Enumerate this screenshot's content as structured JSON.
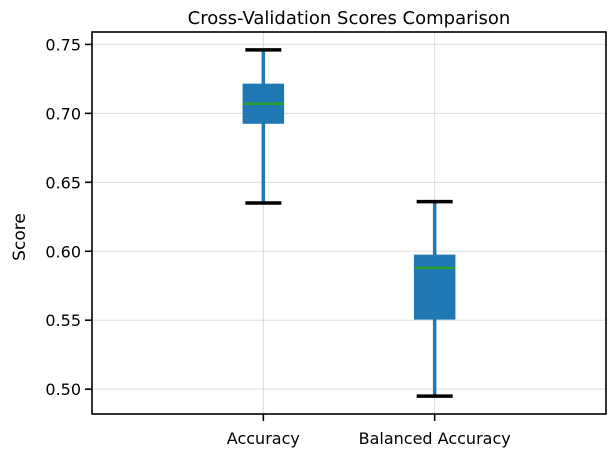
{
  "chart_data": {
    "type": "box",
    "title": "Cross-Validation Scores Comparison",
    "xlabel": "",
    "ylabel": "Score",
    "categories": [
      "Accuracy",
      "Balanced Accuracy"
    ],
    "boxes": [
      {
        "label": "Accuracy",
        "whisker_low": 0.635,
        "q1": 0.693,
        "median": 0.707,
        "q3": 0.721,
        "whisker_high": 0.746
      },
      {
        "label": "Balanced Accuracy",
        "whisker_low": 0.495,
        "q1": 0.551,
        "median": 0.588,
        "q3": 0.597,
        "whisker_high": 0.636
      }
    ],
    "ylim": [
      0.482,
      0.759
    ],
    "yticks": [
      0.5,
      0.55,
      0.6,
      0.65,
      0.7,
      0.75
    ],
    "ytick_labels": [
      "0.50",
      "0.55",
      "0.60",
      "0.65",
      "0.70",
      "0.75"
    ],
    "grid": true,
    "colors": {
      "box_fill": "#1f77b4",
      "whisker": "#1f77b4",
      "cap": "#000000",
      "median": "#2ca02c",
      "grid": "#dddddd",
      "axes": "#000000"
    }
  }
}
